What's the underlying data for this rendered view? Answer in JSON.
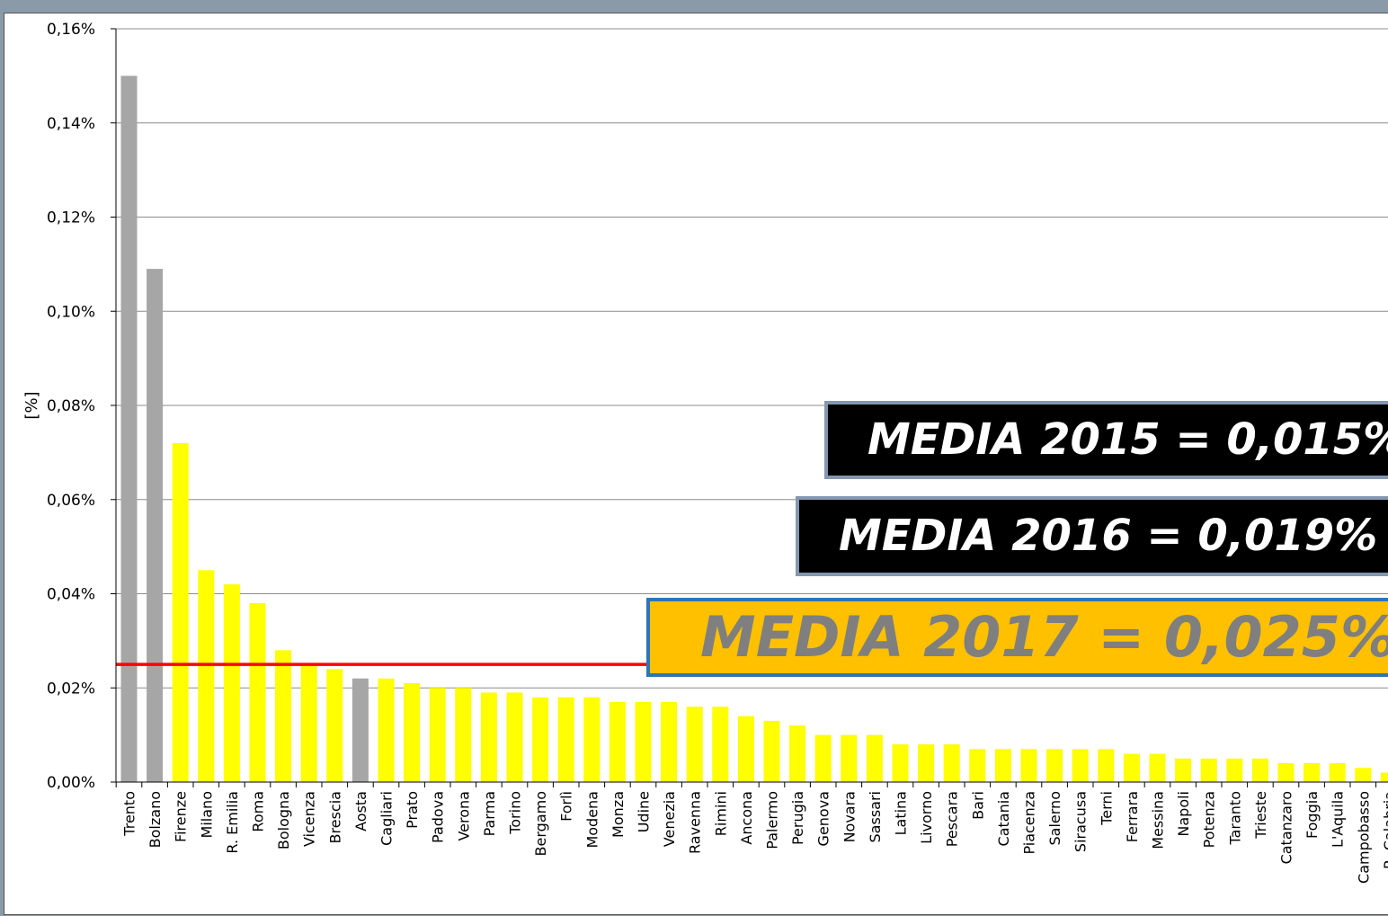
{
  "chart_data": {
    "type": "bar",
    "title": "",
    "xlabel": "",
    "ylabel": "[%]",
    "ylim": [
      0,
      0.16
    ],
    "yticks": [
      "0,00%",
      "0,02%",
      "0,04%",
      "0,06%",
      "0,08%",
      "0,10%",
      "0,12%",
      "0,14%",
      "0,16%"
    ],
    "grid": true,
    "reference_line": {
      "value": 0.025,
      "color": "#ff0000"
    },
    "categories": [
      "Trento",
      "Bolzano",
      "Firenze",
      "Milano",
      "R. Emilia",
      "Roma",
      "Bologna",
      "Vicenza",
      "Brescia",
      "Aosta",
      "Cagliari",
      "Prato",
      "Padova",
      "Verona",
      "Parma",
      "Torino",
      "Bergamo",
      "Forlì",
      "Modena",
      "Monza",
      "Udine",
      "Venezia",
      "Ravenna",
      "Rimini",
      "Ancona",
      "Palermo",
      "Perugia",
      "Genova",
      "Novara",
      "Sassari",
      "Latina",
      "Livorno",
      "Pescara",
      "Bari",
      "Catania",
      "Piacenza",
      "Salerno",
      "Siracusa",
      "Terni",
      "Ferrara",
      "Messina",
      "Napoli",
      "Potenza",
      "Taranto",
      "Trieste",
      "Catanzaro",
      "Foggia",
      "L'Aquila",
      "Campobasso",
      "R. Calabria"
    ],
    "values": [
      0.15,
      0.109,
      0.072,
      0.045,
      0.042,
      0.038,
      0.028,
      0.025,
      0.024,
      0.022,
      0.022,
      0.021,
      0.02,
      0.02,
      0.019,
      0.019,
      0.018,
      0.018,
      0.018,
      0.017,
      0.017,
      0.017,
      0.016,
      0.016,
      0.014,
      0.013,
      0.012,
      0.01,
      0.01,
      0.01,
      0.008,
      0.008,
      0.008,
      0.007,
      0.007,
      0.007,
      0.007,
      0.007,
      0.007,
      0.006,
      0.006,
      0.005,
      0.005,
      0.005,
      0.005,
      0.004,
      0.004,
      0.004,
      0.003,
      0.002
    ],
    "bar_colors": [
      "#a6a6a6",
      "#a6a6a6",
      "#ffff00",
      "#ffff00",
      "#ffff00",
      "#ffff00",
      "#ffff00",
      "#ffff00",
      "#ffff00",
      "#a6a6a6",
      "#ffff00",
      "#ffff00",
      "#ffff00",
      "#ffff00",
      "#ffff00",
      "#ffff00",
      "#ffff00",
      "#ffff00",
      "#ffff00",
      "#ffff00",
      "#ffff00",
      "#ffff00",
      "#ffff00",
      "#ffff00",
      "#ffff00",
      "#ffff00",
      "#ffff00",
      "#ffff00",
      "#ffff00",
      "#ffff00",
      "#ffff00",
      "#ffff00",
      "#ffff00",
      "#ffff00",
      "#ffff00",
      "#ffff00",
      "#ffff00",
      "#ffff00",
      "#ffff00",
      "#ffff00",
      "#ffff00",
      "#ffff00",
      "#ffff00",
      "#ffff00",
      "#ffff00",
      "#ffff00",
      "#ffff00",
      "#ffff00",
      "#ffff00",
      "#ffff00"
    ],
    "annotations": [
      "MEDIA 2015 = 0,015%",
      "MEDIA 2016 = 0,019%",
      "MEDIA 2017 = 0,025%"
    ]
  }
}
